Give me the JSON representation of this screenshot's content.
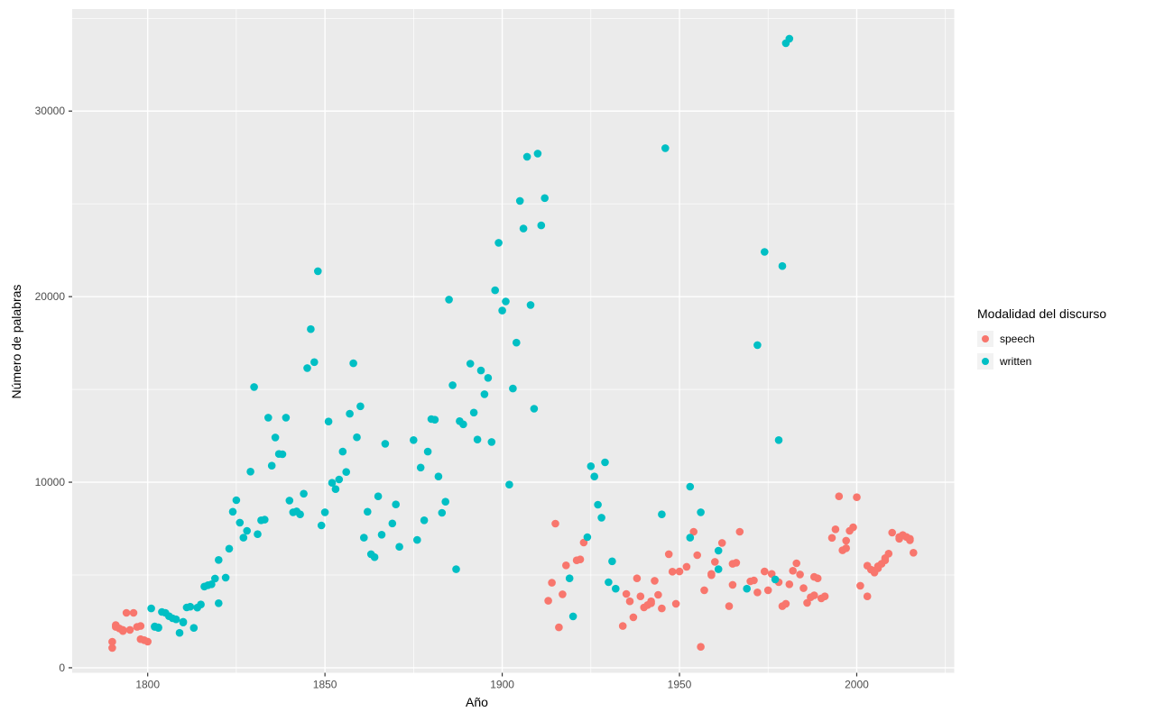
{
  "chart_data": {
    "type": "scatter",
    "title": "",
    "xlabel": "Año",
    "ylabel": "Número de palabras",
    "xlim": [
      1778.7,
      2027.5
    ],
    "ylim": [
      -270,
      35500
    ],
    "x_ticks": [
      1800,
      1850,
      1900,
      1950,
      2000
    ],
    "x_minor_ticks": [
      1825,
      1875,
      1925,
      1975,
      2025
    ],
    "y_ticks": [
      0,
      10000,
      20000,
      30000
    ],
    "y_minor_ticks": [
      5000,
      15000,
      25000,
      35000
    ],
    "grid": true,
    "panel_bg": "#EBEBEB",
    "grid_color": "#FFFFFF",
    "tick_color": "#333333",
    "tick_label_color": "#4D4D4D",
    "point_radius": 4.3,
    "legend": {
      "title": "Modalidad del discurso",
      "position": "right",
      "entries": [
        {
          "label": "speech",
          "color": "#F8766D"
        },
        {
          "label": "written",
          "color": "#00BFC4"
        }
      ]
    },
    "series": [
      {
        "name": "speech",
        "color": "#F8766D",
        "points": [
          [
            1790,
            1400
          ],
          [
            1790,
            1070
          ],
          [
            1791,
            2300
          ],
          [
            1791,
            2200
          ],
          [
            1792,
            2120
          ],
          [
            1793,
            2040
          ],
          [
            1793,
            1980
          ],
          [
            1794,
            2960
          ],
          [
            1795,
            2040
          ],
          [
            1796,
            2960
          ],
          [
            1797,
            2200
          ],
          [
            1798,
            2250
          ],
          [
            1798,
            1540
          ],
          [
            1799,
            1490
          ],
          [
            1800,
            1410
          ],
          [
            1913,
            3610
          ],
          [
            1914,
            4580
          ],
          [
            1915,
            7770
          ],
          [
            1916,
            2180
          ],
          [
            1917,
            3960
          ],
          [
            1918,
            5520
          ],
          [
            1921,
            5790
          ],
          [
            1922,
            5840
          ],
          [
            1923,
            6750
          ],
          [
            1934,
            2250
          ],
          [
            1935,
            3980
          ],
          [
            1936,
            3580
          ],
          [
            1937,
            2720
          ],
          [
            1938,
            4820
          ],
          [
            1939,
            3850
          ],
          [
            1940,
            3250
          ],
          [
            1941,
            3380
          ],
          [
            1942,
            3480
          ],
          [
            1942,
            3580
          ],
          [
            1943,
            4690
          ],
          [
            1944,
            3930
          ],
          [
            1945,
            3200
          ],
          [
            1947,
            6120
          ],
          [
            1948,
            5180
          ],
          [
            1949,
            3450
          ],
          [
            1950,
            5190
          ],
          [
            1952,
            5440
          ],
          [
            1954,
            7330
          ],
          [
            1955,
            6070
          ],
          [
            1956,
            1130
          ],
          [
            1957,
            4180
          ],
          [
            1959,
            5060
          ],
          [
            1959,
            4990
          ],
          [
            1960,
            5710
          ],
          [
            1962,
            6730
          ],
          [
            1964,
            3320
          ],
          [
            1965,
            4470
          ],
          [
            1965,
            5600
          ],
          [
            1966,
            5660
          ],
          [
            1967,
            7330
          ],
          [
            1970,
            4660
          ],
          [
            1971,
            4710
          ],
          [
            1972,
            4060
          ],
          [
            1974,
            5190
          ],
          [
            1975,
            4180
          ],
          [
            1976,
            5060
          ],
          [
            1978,
            4610
          ],
          [
            1979,
            3320
          ],
          [
            1980,
            3450
          ],
          [
            1981,
            4500
          ],
          [
            1982,
            5230
          ],
          [
            1983,
            5630
          ],
          [
            1984,
            5030
          ],
          [
            1985,
            4290
          ],
          [
            1986,
            3500
          ],
          [
            1987,
            3800
          ],
          [
            1988,
            3900
          ],
          [
            1988,
            4900
          ],
          [
            1989,
            4820
          ],
          [
            1990,
            3740
          ],
          [
            1991,
            3850
          ],
          [
            1993,
            7000
          ],
          [
            1994,
            7460
          ],
          [
            1995,
            9240
          ],
          [
            1996,
            6330
          ],
          [
            1997,
            6440
          ],
          [
            1997,
            6850
          ],
          [
            1998,
            7380
          ],
          [
            1999,
            7570
          ],
          [
            2000,
            9190
          ],
          [
            2001,
            4420
          ],
          [
            2003,
            3850
          ],
          [
            2003,
            5500
          ],
          [
            2004,
            5290
          ],
          [
            2005,
            5130
          ],
          [
            2005,
            5230
          ],
          [
            2006,
            5360
          ],
          [
            2006,
            5470
          ],
          [
            2007,
            5600
          ],
          [
            2008,
            5790
          ],
          [
            2008,
            5910
          ],
          [
            2009,
            6150
          ],
          [
            2010,
            7280
          ],
          [
            2012,
            6950
          ],
          [
            2012,
            7050
          ],
          [
            2013,
            7150
          ],
          [
            2014,
            7050
          ],
          [
            2015,
            6950
          ],
          [
            2015,
            6870
          ],
          [
            2016,
            6200
          ]
        ]
      },
      {
        "name": "written",
        "color": "#00BFC4",
        "points": [
          [
            1801,
            3200
          ],
          [
            1802,
            2230
          ],
          [
            1802,
            2200
          ],
          [
            1803,
            2180
          ],
          [
            1803,
            2150
          ],
          [
            1804,
            3010
          ],
          [
            1805,
            2960
          ],
          [
            1806,
            2780
          ],
          [
            1807,
            2670
          ],
          [
            1808,
            2610
          ],
          [
            1809,
            1880
          ],
          [
            1810,
            2480
          ],
          [
            1810,
            2440
          ],
          [
            1811,
            3250
          ],
          [
            1812,
            3290
          ],
          [
            1813,
            2150
          ],
          [
            1814,
            3240
          ],
          [
            1815,
            3410
          ],
          [
            1816,
            4380
          ],
          [
            1817,
            4450
          ],
          [
            1818,
            4500
          ],
          [
            1819,
            4810
          ],
          [
            1820,
            3480
          ],
          [
            1820,
            5810
          ],
          [
            1822,
            4860
          ],
          [
            1823,
            6420
          ],
          [
            1824,
            8410
          ],
          [
            1825,
            9030
          ],
          [
            1826,
            7820
          ],
          [
            1827,
            7010
          ],
          [
            1828,
            7380
          ],
          [
            1829,
            10570
          ],
          [
            1830,
            15130
          ],
          [
            1831,
            7200
          ],
          [
            1832,
            7950
          ],
          [
            1833,
            7980
          ],
          [
            1834,
            13480
          ],
          [
            1835,
            10890
          ],
          [
            1836,
            12410
          ],
          [
            1837,
            11520
          ],
          [
            1838,
            11510
          ],
          [
            1839,
            13480
          ],
          [
            1840,
            9010
          ],
          [
            1841,
            8380
          ],
          [
            1842,
            8430
          ],
          [
            1843,
            8270
          ],
          [
            1844,
            9380
          ],
          [
            1845,
            16150
          ],
          [
            1846,
            18250
          ],
          [
            1847,
            16470
          ],
          [
            1848,
            21370
          ],
          [
            1849,
            7670
          ],
          [
            1850,
            8380
          ],
          [
            1851,
            13270
          ],
          [
            1852,
            9970
          ],
          [
            1853,
            9630
          ],
          [
            1854,
            10150
          ],
          [
            1855,
            11650
          ],
          [
            1856,
            10550
          ],
          [
            1857,
            13690
          ],
          [
            1858,
            16410
          ],
          [
            1859,
            12420
          ],
          [
            1860,
            14090
          ],
          [
            1861,
            7010
          ],
          [
            1862,
            8410
          ],
          [
            1863,
            6120
          ],
          [
            1864,
            5960
          ],
          [
            1865,
            9240
          ],
          [
            1866,
            7170
          ],
          [
            1867,
            12070
          ],
          [
            1869,
            7780
          ],
          [
            1870,
            8800
          ],
          [
            1871,
            6520
          ],
          [
            1875,
            12270
          ],
          [
            1876,
            6890
          ],
          [
            1877,
            10790
          ],
          [
            1878,
            7950
          ],
          [
            1879,
            11650
          ],
          [
            1880,
            13400
          ],
          [
            1881,
            13370
          ],
          [
            1882,
            10310
          ],
          [
            1883,
            8350
          ],
          [
            1884,
            8950
          ],
          [
            1885,
            19840
          ],
          [
            1886,
            15230
          ],
          [
            1887,
            5310
          ],
          [
            1888,
            13290
          ],
          [
            1889,
            13120
          ],
          [
            1891,
            16390
          ],
          [
            1892,
            13750
          ],
          [
            1893,
            12300
          ],
          [
            1894,
            16020
          ],
          [
            1895,
            14740
          ],
          [
            1896,
            15620
          ],
          [
            1897,
            12170
          ],
          [
            1898,
            20340
          ],
          [
            1899,
            22900
          ],
          [
            1900,
            19250
          ],
          [
            1901,
            19740
          ],
          [
            1902,
            9870
          ],
          [
            1903,
            15050
          ],
          [
            1904,
            17520
          ],
          [
            1905,
            25160
          ],
          [
            1906,
            23670
          ],
          [
            1907,
            27540
          ],
          [
            1908,
            19550
          ],
          [
            1909,
            13960
          ],
          [
            1910,
            27710
          ],
          [
            1911,
            23840
          ],
          [
            1912,
            25310
          ],
          [
            1919,
            4820
          ],
          [
            1920,
            2770
          ],
          [
            1924,
            7040
          ],
          [
            1925,
            10860
          ],
          [
            1926,
            10310
          ],
          [
            1927,
            8790
          ],
          [
            1928,
            8090
          ],
          [
            1929,
            11070
          ],
          [
            1930,
            4610
          ],
          [
            1931,
            5740
          ],
          [
            1932,
            4260
          ],
          [
            1945,
            8270
          ],
          [
            1946,
            28000
          ],
          [
            1953,
            9760
          ],
          [
            1953,
            7010
          ],
          [
            1956,
            8380
          ],
          [
            1961,
            6310
          ],
          [
            1961,
            5310
          ],
          [
            1969,
            4260
          ],
          [
            1972,
            17390
          ],
          [
            1974,
            22410
          ],
          [
            1977,
            4760
          ],
          [
            1978,
            12270
          ],
          [
            1979,
            21650
          ],
          [
            1980,
            33660
          ],
          [
            1981,
            33900
          ]
        ]
      }
    ]
  }
}
